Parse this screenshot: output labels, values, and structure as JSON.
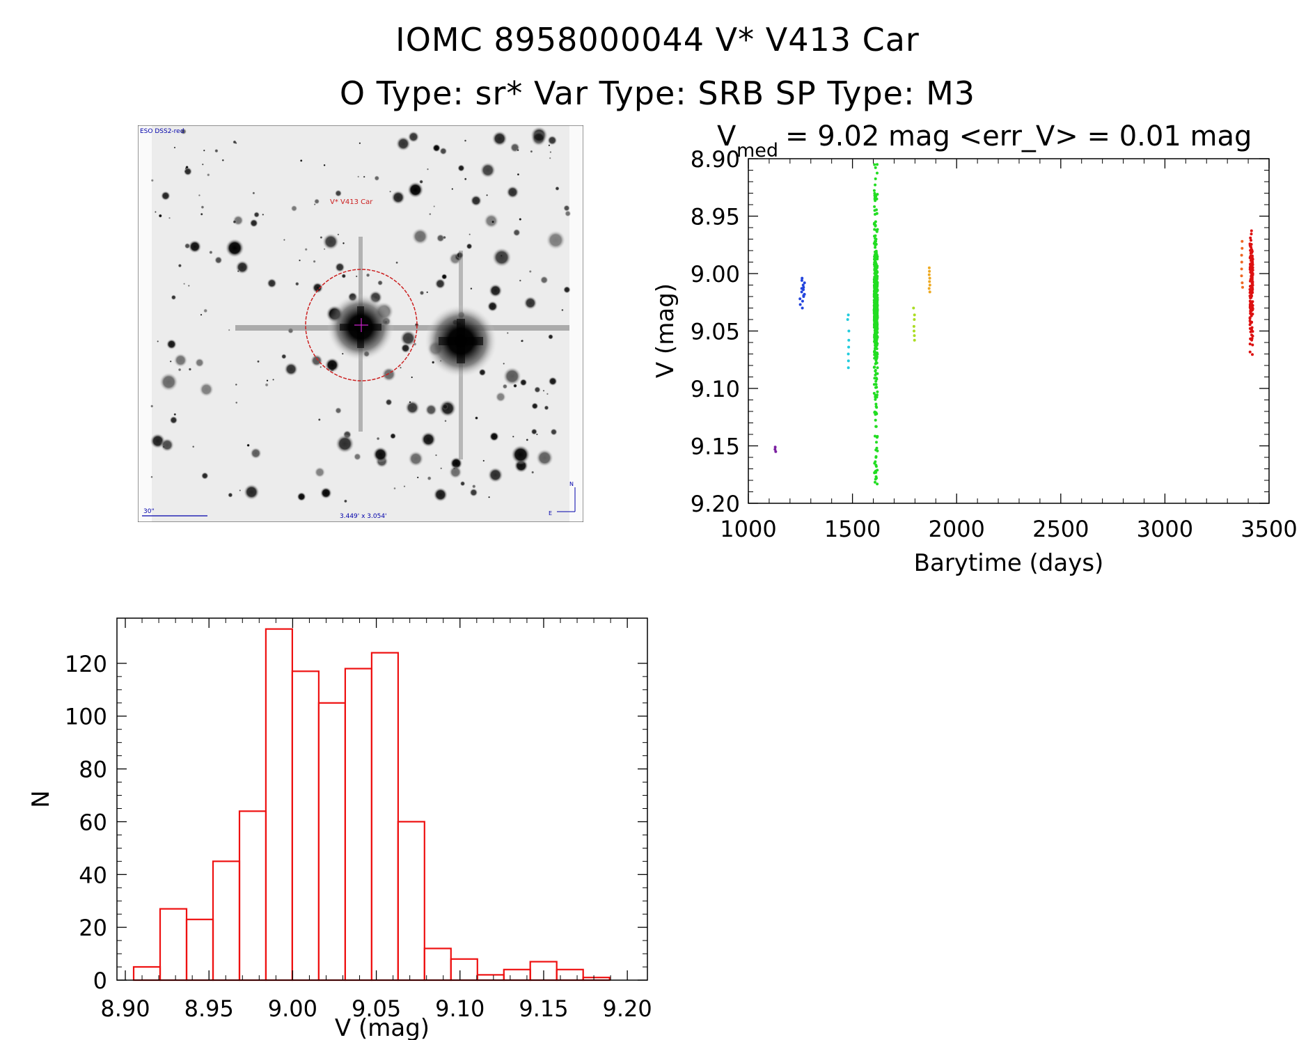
{
  "header": {
    "line1": "IOMC 8958000044   V* V413 Car",
    "line2": "O Type: sr*  Var Type: SRB  SP Type: M3"
  },
  "sky_image": {
    "source_label": "ESO DSS2-red",
    "target_label": "V* V413 Car",
    "scale_label": "30\"",
    "fov_label": "3.449' x 3.054'",
    "north": "N",
    "east": "E",
    "circle_color": "#cc2020",
    "label_color": "#0000aa"
  },
  "chart_data": [
    {
      "type": "scatter",
      "title_main": "V",
      "title_sub": "med",
      "title_rest": "= 9.02 mag <err_V> = 0.01 mag",
      "xlabel": "Barytime (days)",
      "ylabel": "V (mag)",
      "xlim": [
        1000,
        3500
      ],
      "ylim": [
        9.2,
        8.9
      ],
      "y_inverted": true,
      "xticks": [
        1000,
        1500,
        2000,
        2500,
        3000,
        3500
      ],
      "yticks": [
        "8.90",
        "8.95",
        "9.00",
        "9.05",
        "9.10",
        "9.15",
        "9.20"
      ],
      "series": [
        {
          "color": "#7a1fa0",
          "x_center": 1130,
          "x_spread": 2,
          "y_values": [
            9.151,
            9.153,
            9.155
          ]
        },
        {
          "color": "#2244dd",
          "x_center": 1260,
          "x_spread": 12,
          "y_values": [
            9.004,
            9.006,
            9.008,
            9.01,
            9.012,
            9.014,
            9.016,
            9.018,
            9.02,
            9.022,
            9.024,
            9.027,
            9.03,
            9.013,
            9.019
          ]
        },
        {
          "color": "#22ccdd",
          "x_center": 1480,
          "x_spread": 3,
          "y_values": [
            9.036,
            9.04,
            9.05,
            9.058,
            9.064,
            9.07,
            9.076,
            9.082
          ]
        },
        {
          "color": "#22dd22",
          "x_center": 1612,
          "x_spread": 8,
          "y_min": 8.905,
          "y_max": 9.185,
          "y_median": 9.03,
          "count": 600
        },
        {
          "color": "#aadd22",
          "x_center": 1795,
          "x_spread": 3,
          "y_values": [
            9.03,
            9.036,
            9.04,
            9.046,
            9.05,
            9.054,
            9.058
          ]
        },
        {
          "color": "#eeaa22",
          "x_center": 1870,
          "x_spread": 2,
          "y_values": [
            8.995,
            8.998,
            9.001,
            9.004,
            9.007,
            9.01,
            9.013,
            9.016
          ]
        },
        {
          "color": "#ee6622",
          "x_center": 3370,
          "x_spread": 3,
          "y_values": [
            8.972,
            8.978,
            8.984,
            8.99,
            8.996,
            9.002,
            9.008,
            9.012
          ]
        },
        {
          "color": "#dd1111",
          "x_center": 3415,
          "x_spread": 7,
          "y_min": 8.962,
          "y_max": 9.08,
          "y_median": 9.01,
          "count": 160
        }
      ]
    },
    {
      "type": "bar",
      "xlabel": "V (mag)",
      "ylabel": "N",
      "xlim": [
        8.895,
        9.212
      ],
      "ylim": [
        0,
        135
      ],
      "xticks": [
        "8.90",
        "8.95",
        "9.00",
        "9.05",
        "9.10",
        "9.15",
        "9.20"
      ],
      "yticks": [
        "0",
        "20",
        "40",
        "60",
        "80",
        "100",
        "120"
      ],
      "bar_color": "#ee1111",
      "bin_start": 8.905,
      "bin_width": 0.0158,
      "values": [
        5,
        27,
        23,
        45,
        64,
        133,
        117,
        105,
        118,
        124,
        60,
        12,
        8,
        2,
        4,
        7,
        4,
        1
      ]
    }
  ]
}
